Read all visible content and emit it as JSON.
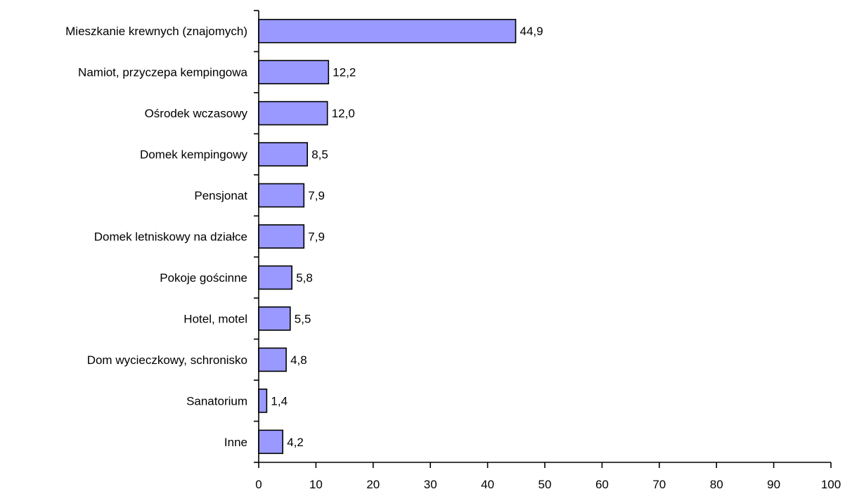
{
  "chart_data": {
    "type": "bar",
    "orientation": "horizontal",
    "title": "",
    "xlabel": "",
    "ylabel": "",
    "categories": [
      "Mieszkanie krewnych (znajomych)",
      "Namiot, przyczepa kempingowa",
      "Ośrodek wczasowy",
      "Domek kempingowy",
      "Pensjonat",
      "Domek letniskowy na działce",
      "Pokoje gościnne",
      "Hotel, motel",
      "Dom wycieczkowy, schronisko",
      "Sanatorium",
      "Inne"
    ],
    "values": [
      44.9,
      12.2,
      12.0,
      8.5,
      7.9,
      7.9,
      5.8,
      5.5,
      4.8,
      1.4,
      4.2
    ],
    "value_labels": [
      "44,9",
      "12,2",
      "12,0",
      "8,5",
      "7,9",
      "7,9",
      "5,8",
      "5,5",
      "4,8",
      "1,4",
      "4,2"
    ],
    "xlim": [
      0,
      100
    ],
    "xticks": [
      0,
      10,
      20,
      30,
      40,
      50,
      60,
      70,
      80,
      90,
      100
    ],
    "grid": false,
    "legend": "none",
    "colors": {
      "bar_fill": "#9999FF",
      "bar_stroke": "#000000",
      "axis": "#000000"
    }
  }
}
